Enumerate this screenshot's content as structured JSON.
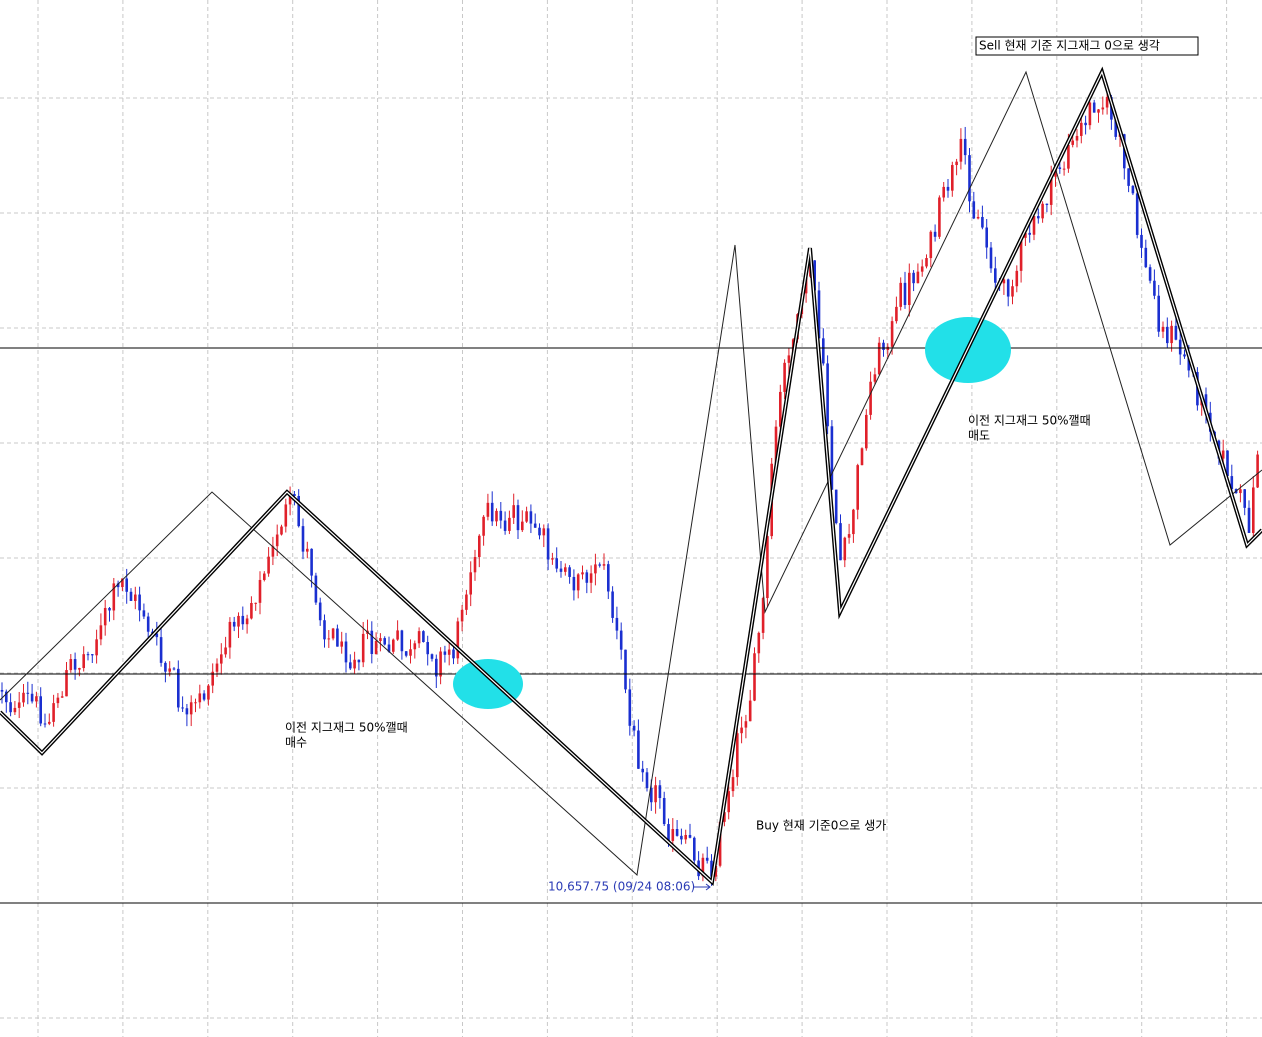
{
  "notes": {
    "sell_current": "Sell 현재 기준 지그재그 0으로 생각",
    "sell_rule": [
      "이전 지그재그 50%깰때",
      "매도"
    ],
    "buy_rule": [
      "이전 지그재그 50%깰때",
      "매수"
    ],
    "buy_current": "Buy 현재 기준0으로 생가"
  },
  "price_label": "10,657.75 (09/24 08:06)"
}
